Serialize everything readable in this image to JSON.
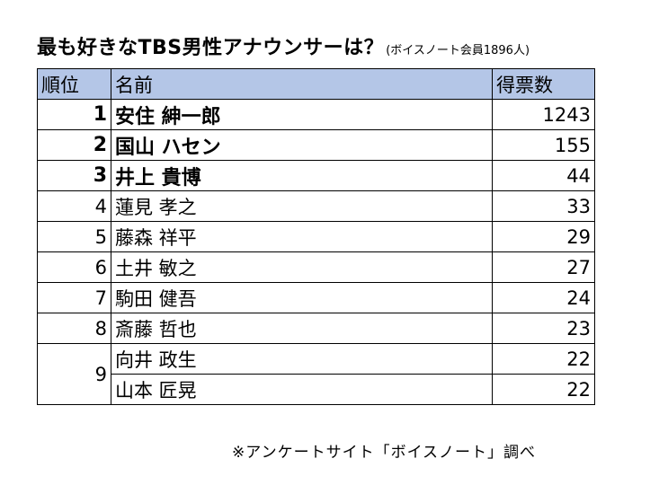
{
  "title": {
    "main": "最も好きなTBS男性アナウンサーは？",
    "sub": "(ボイスノート会員1896人)"
  },
  "table": {
    "headers": {
      "rank": "順位",
      "name": "名前",
      "votes": "得票数"
    },
    "header_color": "#b4c6e7",
    "rows": [
      {
        "rank": "1",
        "name": "安住 紳一郎",
        "votes": "1243"
      },
      {
        "rank": "2",
        "name": "国山 ハセン",
        "votes": "155"
      },
      {
        "rank": "3",
        "name": "井上 貴博",
        "votes": "44"
      },
      {
        "rank": "4",
        "name": "蓮見 孝之",
        "votes": "33"
      },
      {
        "rank": "5",
        "name": "藤森 祥平",
        "votes": "29"
      },
      {
        "rank": "6",
        "name": "土井 敏之",
        "votes": "27"
      },
      {
        "rank": "7",
        "name": "駒田 健吾",
        "votes": "24"
      },
      {
        "rank": "8",
        "name": "斎藤 哲也",
        "votes": "23"
      },
      {
        "rank": "9",
        "name": "向井 政生",
        "votes": "22"
      },
      {
        "rank": "",
        "name": "山本 匠晃",
        "votes": "22"
      }
    ]
  },
  "footer": "※アンケートサイト「ボイスノート」調べ"
}
